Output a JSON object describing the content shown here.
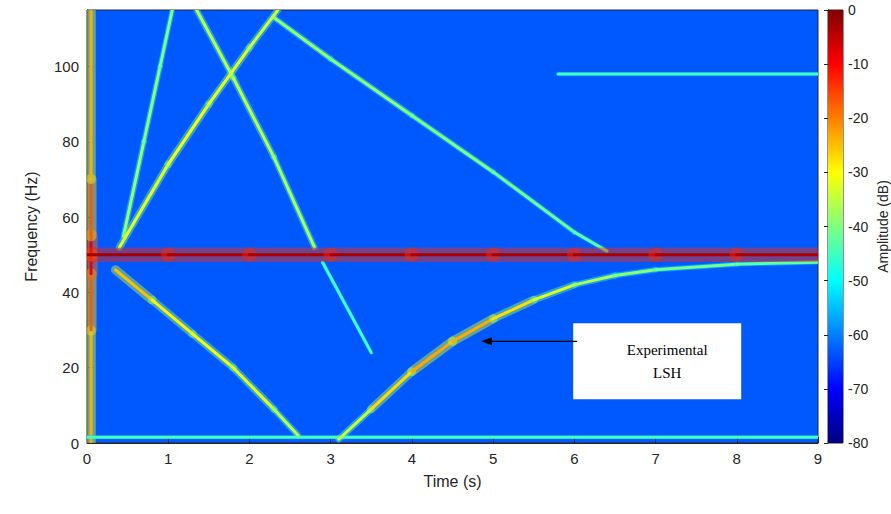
{
  "chart_data": {
    "type": "spectrogram",
    "xlabel": "Time (s)",
    "ylabel": "Frequency (Hz)",
    "xlim": [
      0,
      9
    ],
    "xticks": [
      0,
      1,
      2,
      3,
      4,
      5,
      6,
      7,
      8,
      9
    ],
    "ylim": [
      0,
      115
    ],
    "yticks": [
      0,
      20,
      40,
      60,
      80,
      100
    ],
    "colorbar": {
      "label": "Amplitude (dB)",
      "range": [
        -80,
        0
      ],
      "ticks": [
        -80,
        -70,
        -60,
        -50,
        -40,
        -30,
        -20,
        -10,
        0
      ]
    },
    "background": -63,
    "ridges": [
      {
        "t": [
          0.05,
          0.05,
          0.05,
          0.05,
          0.05,
          0.05,
          0.05
        ],
        "f": [
          0,
          30,
          45,
          50,
          55,
          70,
          115
        ],
        "amplitude": [
          -25,
          -22,
          -12,
          -5,
          -12,
          -22,
          -25
        ]
      },
      {
        "t": [
          0,
          9
        ],
        "f": [
          1.5,
          1.5
        ],
        "amplitude": [
          -45,
          -45
        ]
      },
      {
        "t": [
          5.8,
          9
        ],
        "f": [
          98,
          98
        ],
        "amplitude": [
          -45,
          -45
        ]
      },
      {
        "t": [
          2.9,
          3.5
        ],
        "f": [
          48,
          24
        ],
        "amplitude": [
          -45,
          -45
        ]
      },
      {
        "t": [
          2.3,
          3,
          4,
          5,
          6,
          6.4
        ],
        "f": [
          113,
          102,
          87,
          72,
          56,
          51
        ],
        "amplitude": [
          -38,
          -38,
          -39,
          -40,
          -42,
          -44
        ]
      },
      {
        "t": [
          1.35,
          1.8,
          2.3,
          2.8
        ],
        "f": [
          115,
          97,
          76,
          52
        ],
        "amplitude": [
          -36,
          -35,
          -35,
          -38
        ]
      },
      {
        "t": [
          0.45,
          0.7,
          0.9,
          1.05
        ],
        "f": [
          55,
          80,
          100,
          115
        ],
        "amplitude": [
          -38,
          -38,
          -40,
          -40
        ]
      },
      {
        "t": [
          0.4,
          1,
          1.5,
          2,
          2.35
        ],
        "f": [
          52,
          74,
          90,
          105,
          115
        ],
        "amplitude": [
          -33,
          -31,
          -31,
          -33,
          -34
        ]
      },
      {
        "t": [
          0.35,
          0.8,
          1.3,
          1.8,
          2.3,
          2.6
        ],
        "f": [
          46,
          38,
          29,
          20,
          9,
          2
        ],
        "amplitude": [
          -22,
          -28,
          -30,
          -31,
          -33,
          -38
        ]
      },
      {
        "t": [
          3.1,
          3.5,
          4,
          4.5,
          5,
          5.5,
          6,
          6.5,
          7,
          8,
          9
        ],
        "f": [
          1,
          9,
          19,
          27,
          33,
          38,
          42,
          44.5,
          46,
          47.5,
          48
        ],
        "amplitude": [
          -38,
          -30,
          -24,
          -22,
          -25,
          -30,
          -35,
          -38,
          -40,
          -42,
          -43
        ]
      },
      {
        "t": [
          0,
          1,
          2,
          3,
          4,
          5,
          6,
          7,
          8,
          9
        ],
        "f": [
          50,
          50,
          50,
          50,
          50,
          50,
          50,
          50,
          50,
          50
        ],
        "amplitude": [
          -2,
          -3,
          -3,
          -3,
          -3,
          -3,
          -3,
          -3,
          -3,
          -3
        ]
      }
    ],
    "annotation": {
      "text": [
        "Experimental",
        "LSH"
      ],
      "xy": [
        4.85,
        27
      ],
      "text_xy": [
        7.02,
        21.7
      ]
    }
  }
}
